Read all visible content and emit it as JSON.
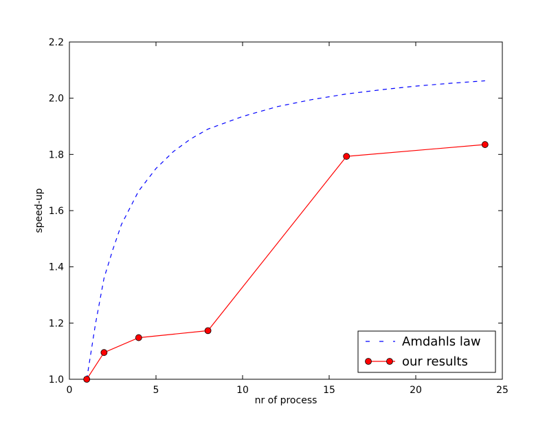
{
  "chart_data": {
    "type": "line",
    "title": "",
    "xlabel": "nr of process",
    "ylabel": "speed-up",
    "xlim": [
      0,
      25
    ],
    "ylim": [
      1.0,
      2.2
    ],
    "xticks": [
      0,
      5,
      10,
      15,
      20,
      25
    ],
    "yticks": [
      1.0,
      1.2,
      1.4,
      1.6,
      1.8,
      2.0,
      2.2
    ],
    "xtick_labels": [
      "0",
      "5",
      "10",
      "15",
      "20",
      "25"
    ],
    "ytick_labels": [
      "1.0",
      "1.2",
      "1.4",
      "1.6",
      "1.8",
      "2.0",
      "2.2"
    ],
    "grid": false,
    "legend_position": "lower-right",
    "series": [
      {
        "name": "Amdahls law",
        "style": "dashed",
        "marker": "none",
        "color": "#0000ff",
        "x": [
          1,
          1.5,
          2,
          2.5,
          3,
          3.5,
          4,
          5,
          6,
          7,
          8,
          10,
          12,
          14,
          16,
          18,
          20,
          22,
          24
        ],
        "y": [
          1.0,
          1.195,
          1.36,
          1.46,
          1.55,
          1.61,
          1.67,
          1.75,
          1.81,
          1.855,
          1.89,
          1.935,
          1.97,
          1.995,
          2.015,
          2.03,
          2.043,
          2.053,
          2.062
        ]
      },
      {
        "name": "our results",
        "style": "solid",
        "marker": "circle",
        "color": "#ff0000",
        "x": [
          1,
          2,
          4,
          8,
          16,
          24
        ],
        "y": [
          1.0,
          1.095,
          1.148,
          1.173,
          1.793,
          1.835
        ]
      }
    ]
  }
}
